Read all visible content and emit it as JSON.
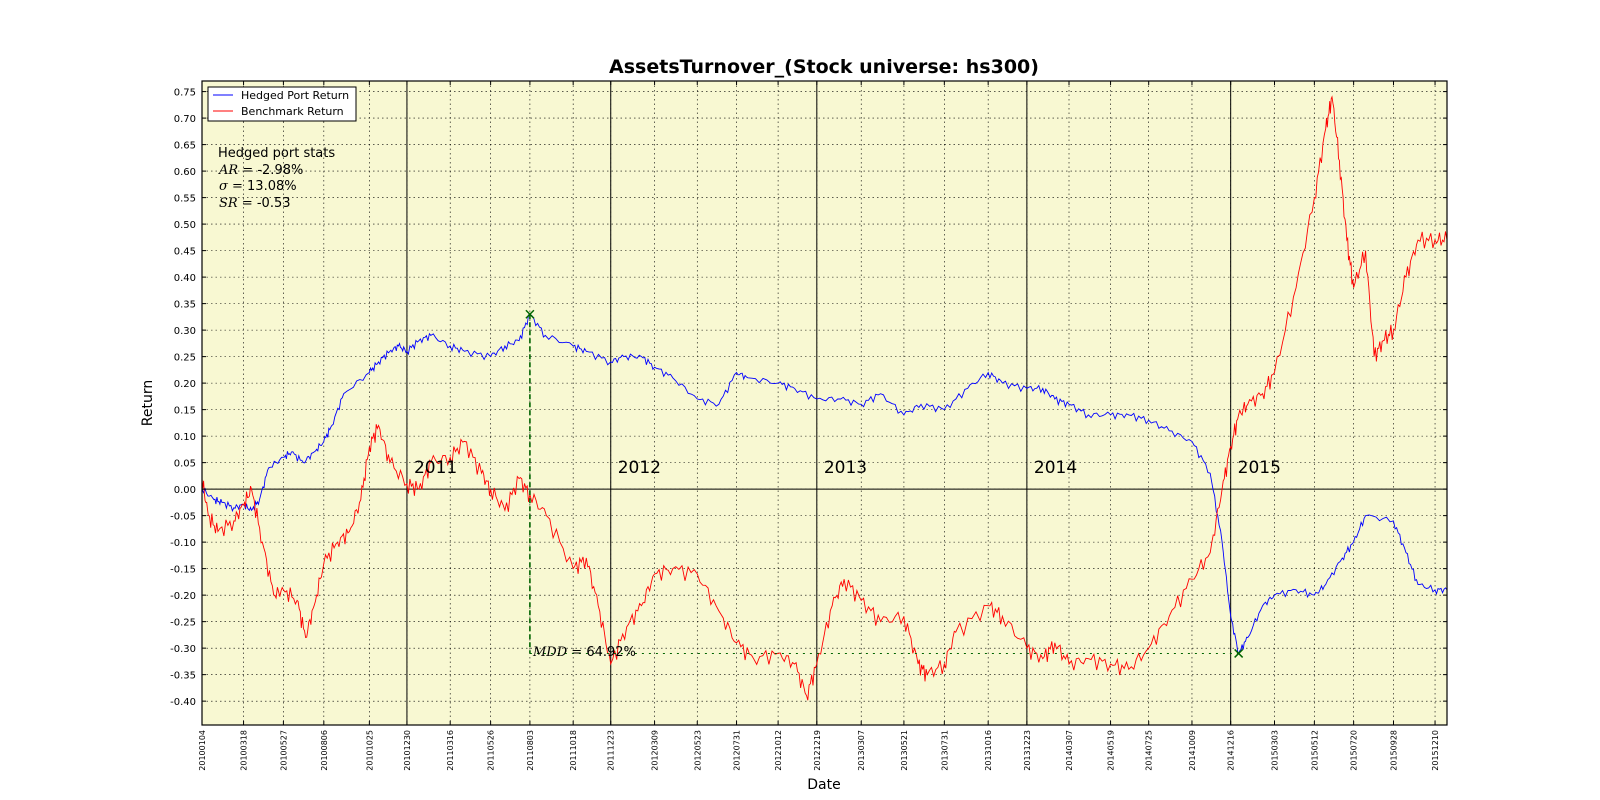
{
  "chart_data": {
    "type": "line",
    "title": "AssetsTurnover_(Stock universe: hs300)",
    "xlabel": "Date",
    "ylabel": "Return",
    "ylim": [
      -0.445,
      0.77
    ],
    "grid": true,
    "legend_position": "top-left",
    "yticks": [
      "0.75",
      "0.70",
      "0.65",
      "0.60",
      "0.55",
      "0.50",
      "0.45",
      "0.40",
      "0.35",
      "0.30",
      "0.25",
      "0.20",
      "0.15",
      "0.10",
      "0.05",
      "0.00",
      "-0.05",
      "-0.10",
      "-0.15",
      "-0.20",
      "-0.25",
      "-0.30",
      "-0.35",
      "-0.40"
    ],
    "xticks": [
      "20100104",
      "20100318",
      "20100527",
      "20100806",
      "20101025",
      "20101230",
      "20110316",
      "20110526",
      "20110803",
      "20111018",
      "20111223",
      "20120309",
      "20120523",
      "20120731",
      "20121012",
      "20121219",
      "20130307",
      "20130521",
      "20130731",
      "20131016",
      "20131223",
      "20140307",
      "20140519",
      "20140725",
      "20141009",
      "20141216",
      "20150303",
      "20150512",
      "20150720",
      "20150928",
      "20151210"
    ],
    "year_labels": [
      {
        "label": "2011",
        "x": "20101230"
      },
      {
        "label": "2012",
        "x": "20111223"
      },
      {
        "label": "2013",
        "x": "20121219"
      },
      {
        "label": "2014",
        "x": "20131223"
      },
      {
        "label": "2015",
        "x": "20141216"
      }
    ],
    "series": [
      {
        "name": "Hedged Port Return",
        "color": "#0000ff",
        "points": [
          [
            "20100104",
            0.0
          ],
          [
            "20100125",
            -0.02
          ],
          [
            "20100208",
            -0.025
          ],
          [
            "20100301",
            -0.035
          ],
          [
            "20100318",
            -0.03
          ],
          [
            "20100401",
            -0.04
          ],
          [
            "20100415",
            -0.02
          ],
          [
            "20100501",
            0.04
          ],
          [
            "20100527",
            0.06
          ],
          [
            "20100610",
            0.07
          ],
          [
            "20100701",
            0.05
          ],
          [
            "20100720",
            0.07
          ],
          [
            "20100806",
            0.09
          ],
          [
            "20100820",
            0.12
          ],
          [
            "20100910",
            0.18
          ],
          [
            "20101025",
            0.22
          ],
          [
            "20101110",
            0.24
          ],
          [
            "20101130",
            0.26
          ],
          [
            "20101215",
            0.27
          ],
          [
            "20101230",
            0.26
          ],
          [
            "20110120",
            0.28
          ],
          [
            "20110210",
            0.29
          ],
          [
            "20110316",
            0.27
          ],
          [
            "20110410",
            0.26
          ],
          [
            "20110526",
            0.25
          ],
          [
            "20110620",
            0.27
          ],
          [
            "20110715",
            0.28
          ],
          [
            "20110803",
            0.33
          ],
          [
            "20110830",
            0.29
          ],
          [
            "20111018",
            0.27
          ],
          [
            "20111110",
            0.26
          ],
          [
            "20111223",
            0.24
          ],
          [
            "20120115",
            0.25
          ],
          [
            "20120215",
            0.25
          ],
          [
            "20120309",
            0.23
          ],
          [
            "20120410",
            0.21
          ],
          [
            "20120523",
            0.17
          ],
          [
            "20120630",
            0.16
          ],
          [
            "20120731",
            0.22
          ],
          [
            "20120820",
            0.21
          ],
          [
            "20121012",
            0.2
          ],
          [
            "20121110",
            0.19
          ],
          [
            "20121219",
            0.17
          ],
          [
            "20130130",
            0.17
          ],
          [
            "20130307",
            0.16
          ],
          [
            "20130410",
            0.18
          ],
          [
            "20130521",
            0.14
          ],
          [
            "20130620",
            0.16
          ],
          [
            "20130731",
            0.15
          ],
          [
            "20130910",
            0.19
          ],
          [
            "20131016",
            0.22
          ],
          [
            "20131110",
            0.2
          ],
          [
            "20131223",
            0.19
          ],
          [
            "20140120",
            0.19
          ],
          [
            "20140210",
            0.17
          ],
          [
            "20140307",
            0.16
          ],
          [
            "20140410",
            0.14
          ],
          [
            "20140519",
            0.14
          ],
          [
            "20140620",
            0.14
          ],
          [
            "20140725",
            0.13
          ],
          [
            "20140830",
            0.11
          ],
          [
            "20141009",
            0.09
          ],
          [
            "20141110",
            0.03
          ],
          [
            "20141201",
            -0.1
          ],
          [
            "20141216",
            -0.24
          ],
          [
            "20141230",
            -0.31
          ],
          [
            "20150115",
            -0.28
          ],
          [
            "20150210",
            -0.22
          ],
          [
            "20150303",
            -0.2
          ],
          [
            "20150410",
            -0.19
          ],
          [
            "20150512",
            -0.2
          ],
          [
            "20150601",
            -0.18
          ],
          [
            "20150630",
            -0.13
          ],
          [
            "20150720",
            -0.1
          ],
          [
            "20150810",
            -0.05
          ],
          [
            "20150928",
            -0.06
          ],
          [
            "20151020",
            -0.12
          ],
          [
            "20151110",
            -0.18
          ],
          [
            "20151210",
            -0.19
          ],
          [
            "20151231",
            -0.19
          ]
        ]
      },
      {
        "name": "Benchmark Return",
        "color": "#ff0000",
        "points": [
          [
            "20100104",
            0.02
          ],
          [
            "20100115",
            -0.05
          ],
          [
            "20100201",
            -0.08
          ],
          [
            "20100301",
            -0.06
          ],
          [
            "20100318",
            -0.03
          ],
          [
            "20100401",
            0.0
          ],
          [
            "20100420",
            -0.1
          ],
          [
            "20100510",
            -0.2
          ],
          [
            "20100527",
            -0.19
          ],
          [
            "20100620",
            -0.21
          ],
          [
            "20100705",
            -0.28
          ],
          [
            "20100720",
            -0.22
          ],
          [
            "20100806",
            -0.14
          ],
          [
            "20100830",
            -0.1
          ],
          [
            "20100920",
            -0.08
          ],
          [
            "20101010",
            -0.02
          ],
          [
            "20101025",
            0.08
          ],
          [
            "20101110",
            0.12
          ],
          [
            "20101130",
            0.05
          ],
          [
            "20101230",
            0.01
          ],
          [
            "20110120",
            0.0
          ],
          [
            "20110210",
            0.05
          ],
          [
            "20110316",
            0.06
          ],
          [
            "20110410",
            0.09
          ],
          [
            "20110510",
            0.03
          ],
          [
            "20110526",
            0.0
          ],
          [
            "20110620",
            -0.04
          ],
          [
            "20110715",
            0.02
          ],
          [
            "20110803",
            -0.01
          ],
          [
            "20110901",
            -0.05
          ],
          [
            "20111018",
            -0.15
          ],
          [
            "20111110",
            -0.13
          ],
          [
            "20111201",
            -0.22
          ],
          [
            "20111223",
            -0.33
          ],
          [
            "20120120",
            -0.26
          ],
          [
            "20120215",
            -0.22
          ],
          [
            "20120309",
            -0.16
          ],
          [
            "20120410",
            -0.15
          ],
          [
            "20120523",
            -0.16
          ],
          [
            "20120630",
            -0.23
          ],
          [
            "20120731",
            -0.29
          ],
          [
            "20120830",
            -0.32
          ],
          [
            "20121012",
            -0.31
          ],
          [
            "20121110",
            -0.33
          ],
          [
            "20121201",
            -0.39
          ],
          [
            "20121219",
            -0.33
          ],
          [
            "20130115",
            -0.22
          ],
          [
            "20130205",
            -0.17
          ],
          [
            "20130307",
            -0.21
          ],
          [
            "20130410",
            -0.25
          ],
          [
            "20130521",
            -0.24
          ],
          [
            "20130615",
            -0.33
          ],
          [
            "20130701",
            -0.35
          ],
          [
            "20130731",
            -0.33
          ],
          [
            "20130820",
            -0.27
          ],
          [
            "20131016",
            -0.22
          ],
          [
            "20131110",
            -0.24
          ],
          [
            "20131223",
            -0.3
          ],
          [
            "20140120",
            -0.32
          ],
          [
            "20140210",
            -0.29
          ],
          [
            "20140307",
            -0.33
          ],
          [
            "20140410",
            -0.32
          ],
          [
            "20140519",
            -0.33
          ],
          [
            "20140620",
            -0.34
          ],
          [
            "20140725",
            -0.3
          ],
          [
            "20140830",
            -0.24
          ],
          [
            "20141009",
            -0.17
          ],
          [
            "20141110",
            -0.12
          ],
          [
            "20141201",
            0.0
          ],
          [
            "20141216",
            0.08
          ],
          [
            "20141230",
            0.14
          ],
          [
            "20150115",
            0.16
          ],
          [
            "20150210",
            0.18
          ],
          [
            "20150303",
            0.22
          ],
          [
            "20150410",
            0.38
          ],
          [
            "20150512",
            0.55
          ],
          [
            "20150601",
            0.68
          ],
          [
            "20150612",
            0.74
          ],
          [
            "20150625",
            0.62
          ],
          [
            "20150708",
            0.47
          ],
          [
            "20150720",
            0.38
          ],
          [
            "20150810",
            0.45
          ],
          [
            "20150825",
            0.25
          ],
          [
            "20150910",
            0.28
          ],
          [
            "20150928",
            0.3
          ],
          [
            "20151020",
            0.4
          ],
          [
            "20151110",
            0.47
          ],
          [
            "20151210",
            0.47
          ],
          [
            "20151231",
            0.47
          ]
        ]
      }
    ],
    "mdd": {
      "label_prefix": "MDD = ",
      "label_value": "64.92%",
      "peak": {
        "x": "20110803",
        "y": 0.33
      },
      "trough": {
        "x": "20141230",
        "y": -0.31
      },
      "color": "#006400"
    },
    "stats": {
      "heading": "Hedged port stats",
      "ar_label": "AR = ",
      "ar_value": "-2.98%",
      "sigma_label": "σ = ",
      "sigma_value": "13.08%",
      "sr_label": "SR = ",
      "sr_value": "-0.53"
    },
    "colors": {
      "plot_background": "#f8f8d2",
      "hedged": "#0000ff",
      "benchmark": "#ff0000",
      "mdd": "#006400"
    }
  }
}
